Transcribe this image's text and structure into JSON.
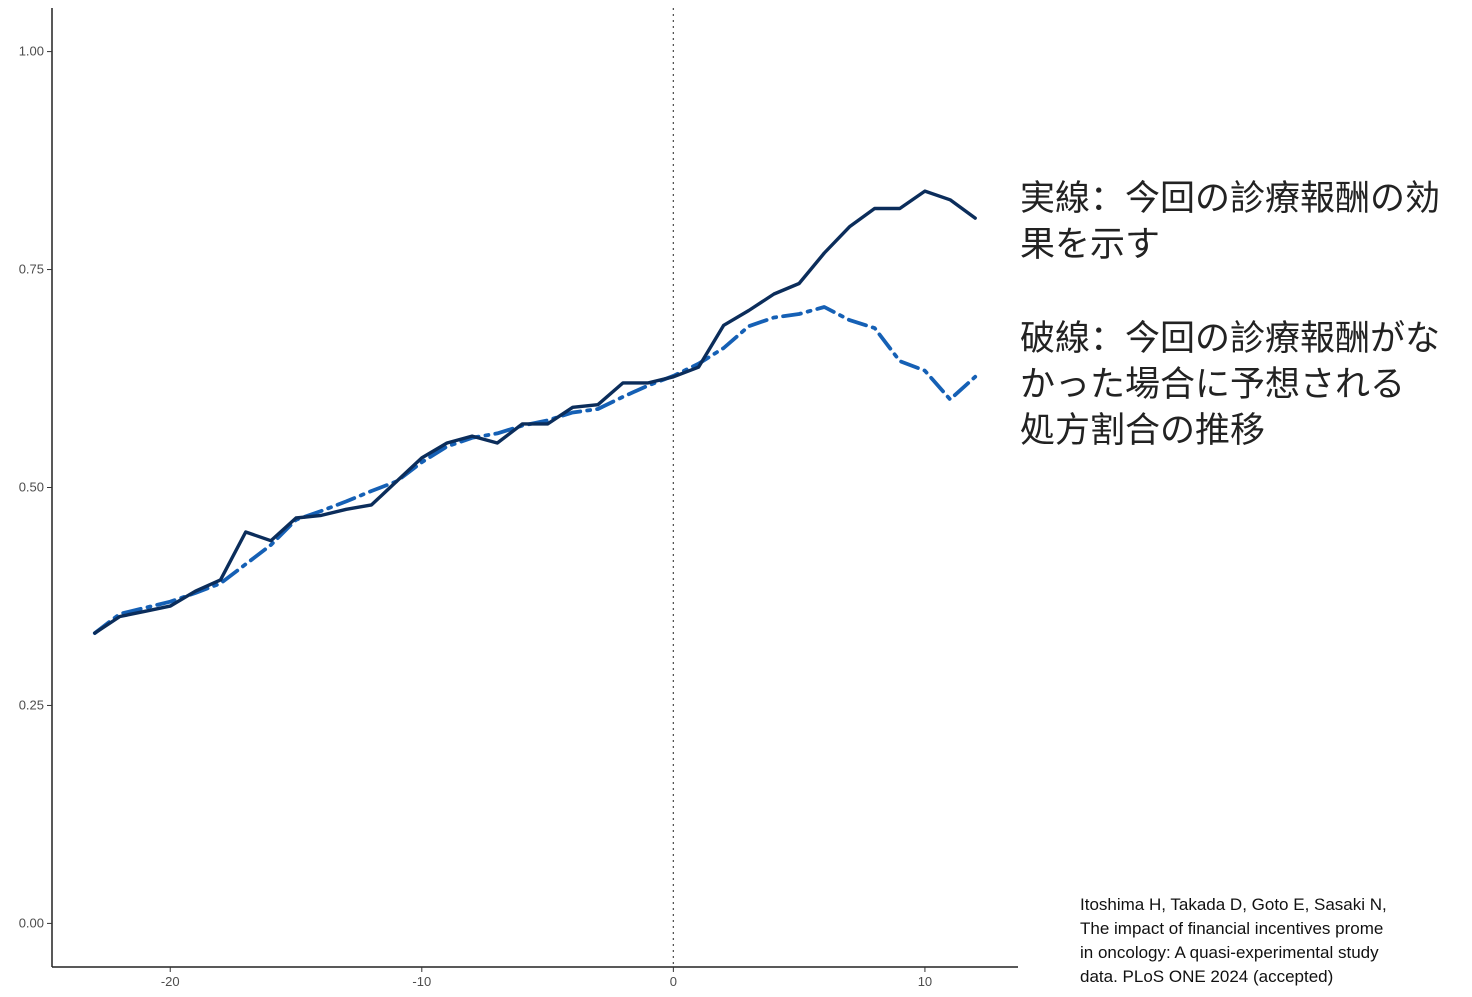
{
  "chart_data": {
    "type": "line",
    "x": [
      -23,
      -22,
      -21,
      -20,
      -19,
      -18,
      -17,
      -16,
      -15,
      -14,
      -13,
      -12,
      -11,
      -10,
      -9,
      -8,
      -7,
      -6,
      -5,
      -4,
      -3,
      -2,
      -1,
      0,
      1,
      2,
      3,
      4,
      5,
      6,
      7,
      8,
      9,
      10,
      11,
      12
    ],
    "series": [
      {
        "values": [
          0.333,
          0.352,
          0.358,
          0.364,
          0.381,
          0.394,
          0.449,
          0.439,
          0.465,
          0.468,
          0.475,
          0.48,
          0.507,
          0.534,
          0.551,
          0.559,
          0.551,
          0.573,
          0.573,
          0.592,
          0.595,
          0.62,
          0.62,
          0.627,
          0.638,
          0.686,
          0.703,
          0.722,
          0.734,
          0.769,
          0.799,
          0.82,
          0.82,
          0.84,
          0.83,
          0.809
        ],
        "style": "solid",
        "color": "#0b2d5b"
      },
      {
        "values": [
          0.333,
          0.355,
          0.362,
          0.369,
          0.379,
          0.39,
          0.412,
          0.434,
          0.463,
          0.473,
          0.484,
          0.496,
          0.507,
          0.529,
          0.547,
          0.557,
          0.562,
          0.571,
          0.577,
          0.586,
          0.59,
          0.604,
          0.617,
          0.628,
          0.642,
          0.66,
          0.685,
          0.695,
          0.699,
          0.707,
          0.692,
          0.683,
          0.645,
          0.634,
          0.601,
          0.627
        ],
        "style": "dashed",
        "color": "#1560b5"
      }
    ],
    "xticks": [
      -20,
      -10,
      0,
      10
    ],
    "yticks": [
      0.0,
      0.25,
      0.5,
      0.75,
      1.0
    ],
    "ytick_labels": [
      "0.00",
      "0.25",
      "0.50",
      "0.75",
      "1.00"
    ],
    "xlim": [
      -24.7,
      13.7
    ],
    "ylim": [
      -0.05,
      1.05
    ],
    "vline_x": 0,
    "vline_style": "dotted",
    "grid": false
  },
  "annotations": {
    "solid_note": [
      "実線：今回の診療報酬の効",
      "果を示す"
    ],
    "dashed_note": [
      "破線：今回の診療報酬がな",
      "かった場合に予想される",
      "処方割合の推移"
    ]
  },
  "citation": {
    "lines": [
      "Itoshima H, Takada D, Goto E, Sasaki N, ",
      "The impact of financial incentives prome",
      "in oncology: A quasi-experimental study",
      "data. PLoS ONE 2024 (accepted)"
    ]
  }
}
